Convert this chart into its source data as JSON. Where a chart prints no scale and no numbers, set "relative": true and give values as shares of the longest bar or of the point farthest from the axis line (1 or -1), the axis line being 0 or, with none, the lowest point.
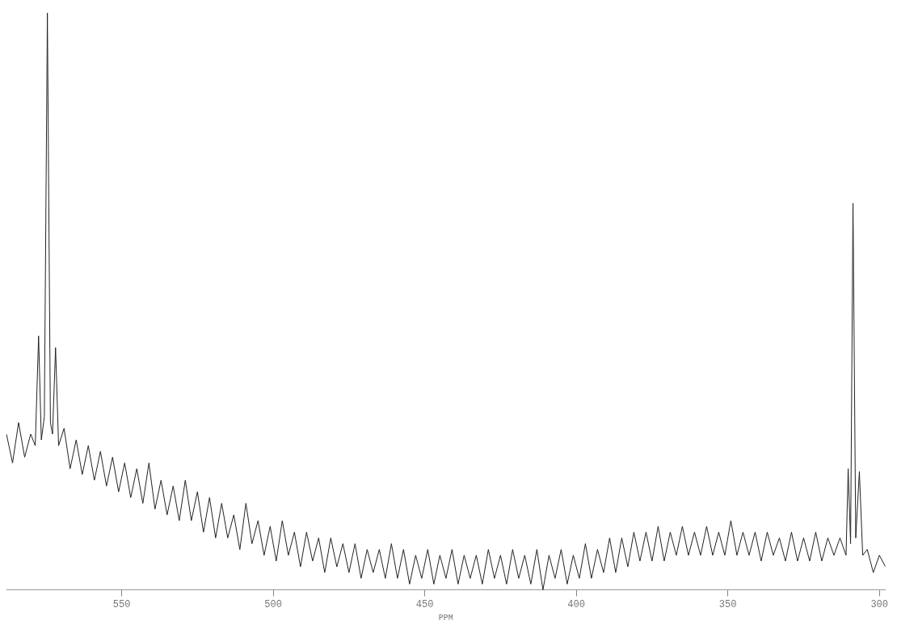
{
  "chart_data": {
    "type": "line",
    "relative": true,
    "xlabel": "PPM",
    "xlim": [
      588,
      298
    ],
    "xticks": [
      550,
      500,
      450,
      400,
      350,
      300
    ],
    "grid": false,
    "legend": false,
    "marker": "none",
    "line_style": "solid",
    "x": [
      588,
      586,
      584,
      582,
      580,
      578.5,
      577.4,
      576.5,
      575.5,
      574.5,
      573.5,
      572.8,
      571.8,
      570.8,
      569,
      567,
      565,
      563,
      561,
      559,
      557,
      555,
      553,
      551,
      549,
      547,
      545,
      543,
      541,
      539,
      537,
      535,
      533,
      531,
      529,
      527,
      525,
      523,
      521,
      519,
      517,
      515,
      513,
      511,
      509,
      507,
      505,
      503,
      501,
      499,
      497,
      495,
      493,
      491,
      489,
      487,
      485,
      483,
      481,
      479,
      477,
      475,
      473,
      471,
      469,
      467,
      465,
      463,
      461,
      459,
      457,
      455,
      453,
      451,
      449,
      447,
      445,
      443,
      441,
      439,
      437,
      435,
      433,
      431,
      429,
      427,
      425,
      423,
      421,
      419,
      417,
      415,
      413,
      411,
      409,
      407,
      405,
      403,
      401,
      399,
      397,
      395,
      393,
      391,
      389,
      387,
      385,
      383,
      381,
      379,
      377,
      375,
      373,
      371,
      369,
      367,
      365,
      363,
      361,
      359,
      357,
      355,
      353,
      351,
      349,
      347,
      345,
      343,
      341,
      339,
      337,
      335,
      333,
      331,
      329,
      327,
      325,
      323,
      321,
      319,
      317,
      315,
      313,
      311,
      310.3,
      309.5,
      308.7,
      307.8,
      306.6,
      305.5,
      304,
      302,
      300,
      298
    ],
    "series": [
      {
        "color": "#222222",
        "values": [
          0.27,
          0.22,
          0.29,
          0.23,
          0.27,
          0.25,
          0.44,
          0.26,
          0.3,
          1.0,
          0.29,
          0.27,
          0.42,
          0.25,
          0.28,
          0.21,
          0.26,
          0.2,
          0.25,
          0.19,
          0.24,
          0.18,
          0.23,
          0.17,
          0.22,
          0.16,
          0.21,
          0.15,
          0.22,
          0.14,
          0.19,
          0.13,
          0.18,
          0.12,
          0.19,
          0.12,
          0.17,
          0.1,
          0.16,
          0.09,
          0.15,
          0.09,
          0.13,
          0.07,
          0.15,
          0.08,
          0.12,
          0.06,
          0.11,
          0.05,
          0.12,
          0.06,
          0.1,
          0.04,
          0.1,
          0.05,
          0.09,
          0.03,
          0.09,
          0.04,
          0.08,
          0.03,
          0.08,
          0.02,
          0.07,
          0.03,
          0.07,
          0.02,
          0.08,
          0.02,
          0.07,
          0.01,
          0.06,
          0.02,
          0.07,
          0.01,
          0.06,
          0.02,
          0.07,
          0.01,
          0.06,
          0.02,
          0.06,
          0.01,
          0.07,
          0.02,
          0.06,
          0.01,
          0.07,
          0.02,
          0.06,
          0.01,
          0.07,
          0.0,
          0.06,
          0.02,
          0.07,
          0.01,
          0.06,
          0.02,
          0.08,
          0.02,
          0.07,
          0.03,
          0.09,
          0.03,
          0.09,
          0.04,
          0.1,
          0.05,
          0.1,
          0.05,
          0.11,
          0.05,
          0.1,
          0.06,
          0.11,
          0.06,
          0.1,
          0.06,
          0.11,
          0.06,
          0.1,
          0.06,
          0.12,
          0.06,
          0.1,
          0.06,
          0.1,
          0.05,
          0.1,
          0.06,
          0.09,
          0.05,
          0.1,
          0.05,
          0.09,
          0.05,
          0.1,
          0.05,
          0.09,
          0.06,
          0.09,
          0.06,
          0.21,
          0.08,
          0.67,
          0.09,
          0.205,
          0.06,
          0.07,
          0.03,
          0.06,
          0.04
        ]
      }
    ]
  }
}
